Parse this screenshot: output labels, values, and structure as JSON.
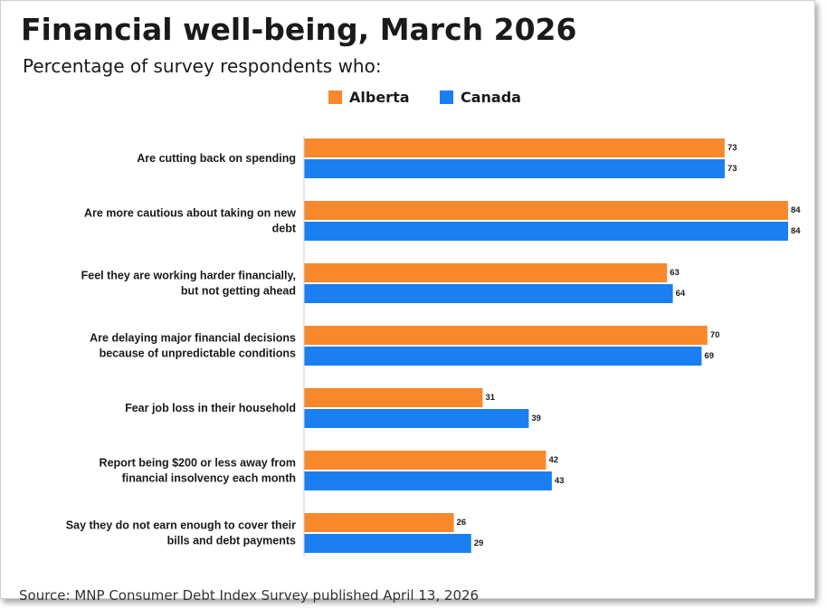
{
  "header": {
    "title": "Financial well-being, March 2026",
    "subtitle": "Percentage of survey respondents who:"
  },
  "footer": {
    "source": "Source: MNP Consumer Debt Index Survey published April 13, 2026"
  },
  "chart_data": {
    "type": "bar",
    "orientation": "horizontal",
    "title": "Financial well-being, March 2026",
    "subtitle": "Percentage of survey respondents who:",
    "legend_position": "top",
    "categories": [
      [
        "Are cutting back on spending"
      ],
      [
        "Are more cautious about taking on new",
        "debt"
      ],
      [
        "Feel they are working harder financially,",
        "but not getting ahead"
      ],
      [
        "Are delaying major financial decisions",
        "because of unpredictable conditions"
      ],
      [
        "Fear job loss in their household"
      ],
      [
        "Report being $200 or less away from",
        "financial insolvency each month"
      ],
      [
        "Say they do not earn enough to cover their",
        "bills and debt payments"
      ]
    ],
    "series": [
      {
        "name": "Alberta",
        "color": "#f7892c",
        "values": [
          73,
          84,
          63,
          70,
          31,
          42,
          26
        ]
      },
      {
        "name": "Canada",
        "color": "#1a7ff0",
        "values": [
          73,
          84,
          64,
          69,
          39,
          43,
          29
        ]
      }
    ],
    "xlim": [
      0,
      84
    ],
    "grid": false
  }
}
